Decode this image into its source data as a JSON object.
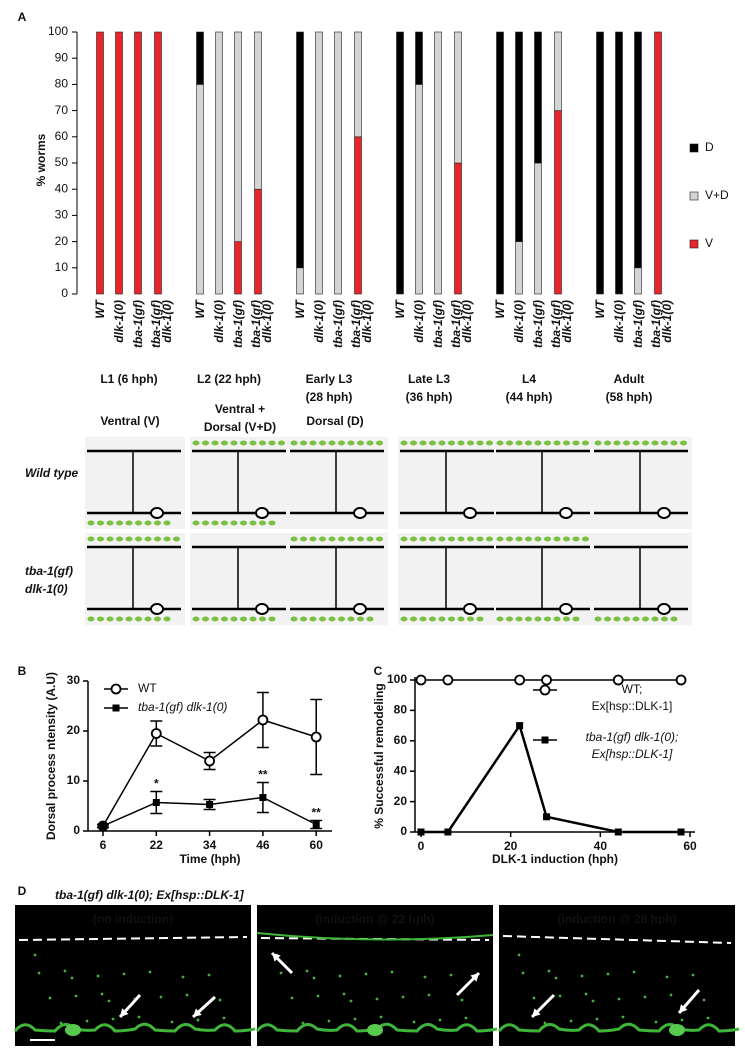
{
  "panels": [
    "A",
    "B",
    "C",
    "D"
  ],
  "chart_data": [
    {
      "type": "stacked-bar",
      "ylabel": "% worms",
      "categories": [
        "WT",
        "dlk-1(0)",
        "tba-1(gf)",
        [
          "tba-1(gf)",
          "dlk-1(0)"
        ],
        "WT",
        "dlk-1(0)",
        "tba-1(gf)",
        [
          "tba-1(gf)",
          "dlk-1(0)"
        ],
        "WT",
        "dlk-1(0)",
        "tba-1(gf)",
        [
          "tba-1(gf)",
          "dlk-1(0)"
        ],
        "WT",
        "dlk-1(0)",
        "tba-1(gf)",
        [
          "tba-1(gf)",
          "dlk-1(0)"
        ],
        "WT",
        "dlk-1(0)",
        "tba-1(gf)",
        [
          "tba-1(gf)",
          "dlk-1(0)"
        ],
        "WT",
        "dlk-1(0)",
        "tba-1(gf)",
        [
          "tba-1(gf)",
          "dlk-1(0)"
        ]
      ],
      "groups": [
        [
          "L1 (6 hph)"
        ],
        [
          "L2 (22 hph)"
        ],
        [
          "Early L3",
          "(28 hph)"
        ],
        [
          "Late L3",
          "(36 hph)"
        ],
        [
          "L4",
          "(44 hph)"
        ],
        [
          "Adult",
          "(58 hph)"
        ]
      ],
      "group_color": "#e8643c",
      "series": [
        {
          "name": "D",
          "color": "#000000",
          "values": [
            0,
            0,
            0,
            0,
            20,
            0,
            0,
            0,
            90,
            0,
            0,
            0,
            100,
            20,
            0,
            0,
            100,
            80,
            50,
            0,
            100,
            100,
            90,
            0
          ]
        },
        {
          "name": "V+D",
          "color": "#d4d4d4",
          "values": [
            0,
            0,
            0,
            0,
            80,
            100,
            80,
            60,
            10,
            100,
            100,
            40,
            0,
            80,
            100,
            50,
            0,
            20,
            50,
            30,
            0,
            0,
            10,
            0
          ]
        },
        {
          "name": "V",
          "color": "#e8262a",
          "values": [
            100,
            100,
            100,
            100,
            0,
            0,
            20,
            40,
            0,
            0,
            0,
            60,
            0,
            0,
            0,
            50,
            0,
            0,
            0,
            70,
            0,
            0,
            0,
            100
          ]
        }
      ],
      "ylim": [
        0,
        100
      ],
      "yticks": [
        0,
        10,
        20,
        30,
        40,
        50,
        60,
        70,
        80,
        90,
        100
      ]
    },
    {
      "type": "line-error",
      "ylabel": "Dorsal process ntensity (A.U)",
      "xlabel": "Time (hph)",
      "categories": [
        "6",
        "22",
        "34",
        "46",
        "60"
      ],
      "series": [
        {
          "name": "WT",
          "marker": "open-circle",
          "values": [
            1,
            19.5,
            14,
            22.2,
            18.8
          ],
          "errors": [
            0.3,
            2.5,
            1.7,
            5.5,
            7.5
          ]
        },
        {
          "name": "tba-1(gf) dlk-1(0)",
          "marker": "filled-square",
          "values": [
            1,
            5.7,
            5.3,
            6.7,
            1.3
          ],
          "errors": [
            0.3,
            2.2,
            1,
            3,
            0.8
          ],
          "annotations": [
            null,
            "*",
            null,
            "**",
            "**"
          ]
        }
      ],
      "ylim": [
        0,
        30
      ],
      "yticks": [
        0,
        10,
        20,
        30
      ]
    },
    {
      "type": "line",
      "ylabel": "% Successful remodeling",
      "xlabel": "DLK-1 induction (hph)",
      "series": [
        {
          "name": [
            "WT;",
            "Ex[hsp::DLK-1]"
          ],
          "marker": "open-circle",
          "x": [
            0,
            6,
            22,
            28,
            44,
            58
          ],
          "values": [
            100,
            100,
            100,
            100,
            100,
            100
          ]
        },
        {
          "name": [
            "tba-1(gf) dlk-1(0);",
            "Ex[hsp::DLK-1]"
          ],
          "marker": "filled-square",
          "x": [
            0,
            6,
            22,
            28,
            44,
            58
          ],
          "values": [
            0,
            0,
            70,
            10,
            0,
            0
          ]
        }
      ],
      "xlim": [
        0,
        60
      ],
      "xticks": [
        0,
        20,
        40,
        60
      ],
      "ylim": [
        0,
        100
      ],
      "yticks": [
        0,
        20,
        40,
        60,
        80,
        100
      ]
    }
  ],
  "diagram": {
    "columns": [
      [
        "Ventral (V)"
      ],
      [
        "Ventral +",
        "Dorsal (V+D)"
      ],
      [
        "Dorsal (D)"
      ]
    ],
    "rows": [
      [
        "Wild type"
      ],
      [
        "tba-1(gf)",
        "dlk-1(0)"
      ]
    ]
  },
  "micrographs": {
    "title": "tba-1(gf) dlk-1(0); Ex[hsp::DLK-1]",
    "captions": [
      "(no induction)",
      "(induction @ 22 hph)",
      "(induction @ 28 hph)"
    ]
  }
}
